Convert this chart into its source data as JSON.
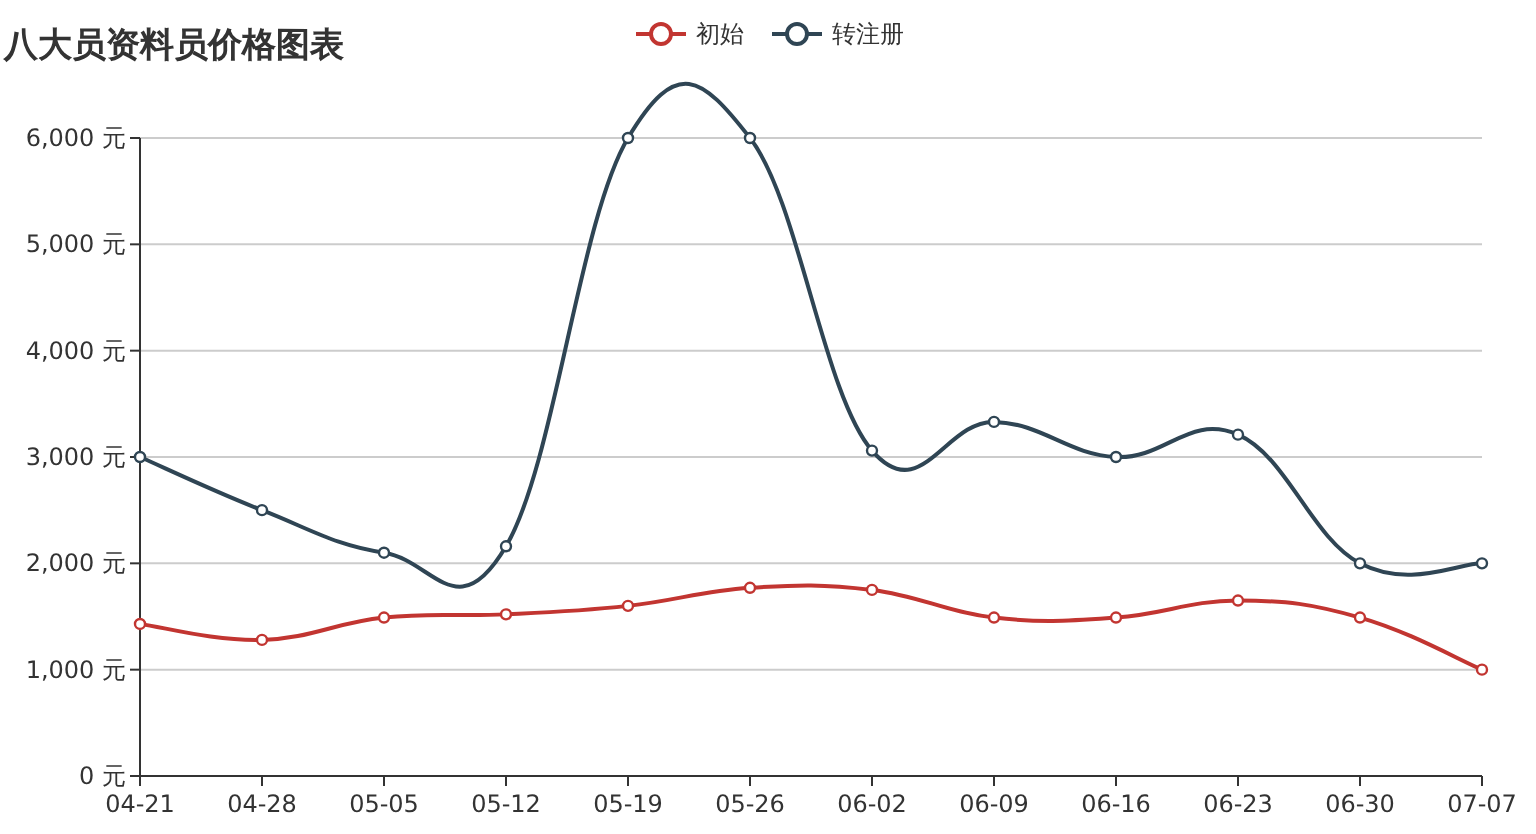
{
  "chart_data": {
    "type": "line",
    "title": "八大员资料员价格图表",
    "categories": [
      "04-21",
      "04-28",
      "05-05",
      "05-12",
      "05-19",
      "05-26",
      "06-02",
      "06-09",
      "06-16",
      "06-23",
      "06-30",
      "07-07"
    ],
    "series": [
      {
        "name": "初始",
        "color": "#c23531",
        "values": [
          1430,
          1280,
          1490,
          1520,
          1600,
          1770,
          1750,
          1490,
          1490,
          1650,
          1490,
          1000
        ]
      },
      {
        "name": "转注册",
        "color": "#2f4554",
        "values": [
          3000,
          2500,
          2100,
          2160,
          6000,
          6000,
          3060,
          3330,
          3000,
          3210,
          2000,
          2000
        ]
      }
    ],
    "ylim": [
      0,
      6000
    ],
    "yticks": [
      {
        "value": 0,
        "label": "0 元"
      },
      {
        "value": 1000,
        "label": "1,000 元"
      },
      {
        "value": 2000,
        "label": "2,000 元"
      },
      {
        "value": 3000,
        "label": "3,000 元"
      },
      {
        "value": 4000,
        "label": "4,000 元"
      },
      {
        "value": 5000,
        "label": "5,000 元"
      },
      {
        "value": 6000,
        "label": "6,000 元"
      }
    ],
    "grid": "y",
    "legend": "top",
    "marker": "circle",
    "line_style": "solid"
  }
}
